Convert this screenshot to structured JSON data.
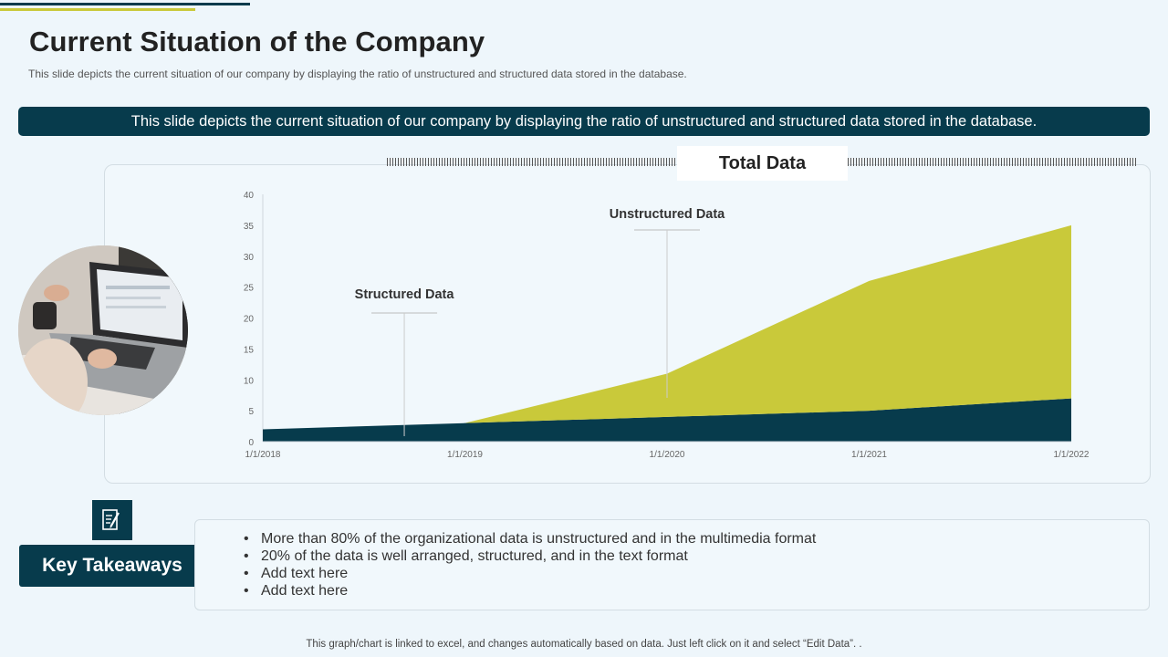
{
  "slide": {
    "title": "Current Situation of the Company",
    "subtitle": "This slide depicts the current situation of our company by displaying the ratio of unstructured and structured data stored in the database.",
    "banner": "This slide depicts the current  situation of our company by displaying the ratio of unstructured  and structured data stored in the database.",
    "footer": "This graph/chart is linked to excel, and changes automatically based on data. Just left click on it and select “Edit Data”. ."
  },
  "key_takeaways": {
    "label": "Key Takeaways",
    "items": [
      "More than 80% of the organizational data is unstructured  and in the multimedia format",
      "20% of the data is well arranged, structured,  and in the text format",
      "Add text here",
      "Add text here"
    ]
  },
  "colors": {
    "primary": "#073b4c",
    "accent": "#c9c93a",
    "background": "#eef6fb"
  },
  "icons": {
    "note": "notepad-pencil-icon",
    "photo": "laptop-photo"
  },
  "chart_data": {
    "type": "area",
    "stacked": true,
    "title": "Total Data",
    "categories": [
      "1/1/2018",
      "1/1/2019",
      "1/1/2020",
      "1/1/2021",
      "1/1/2022"
    ],
    "series": [
      {
        "name": "Structured Data",
        "values": [
          2,
          3,
          4,
          5,
          7
        ],
        "color": "#073b4c"
      },
      {
        "name": "Unstructured Data",
        "values": [
          0,
          0,
          7,
          21,
          28
        ],
        "color": "#c9c93a"
      }
    ],
    "yticks": [
      0,
      5,
      10,
      15,
      20,
      25,
      30,
      35,
      40
    ],
    "ylim": [
      0,
      40
    ],
    "annotations": [
      {
        "text": "Structured Data",
        "x_index": 0.7
      },
      {
        "text": "Unstructured Data",
        "x_index": 2.0
      }
    ],
    "grid": false
  }
}
